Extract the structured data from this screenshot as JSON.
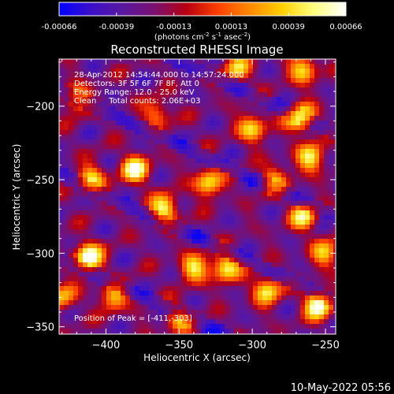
{
  "chart_data": {
    "type": "heatmap",
    "title": "Reconstructed RHESSI Image",
    "xlabel": "Heliocentric X (arcsec)",
    "ylabel": "Heliocentric Y (arcsec)",
    "xlim": [
      -432,
      -243
    ],
    "ylim": [
      -355,
      -168
    ],
    "xticks": [
      -400,
      -350,
      -300,
      -250
    ],
    "yticks": [
      -200,
      -250,
      -300,
      -350
    ],
    "colorbar": {
      "ticks": [
        "-0.00066",
        "-0.00039",
        "-0.00013",
        "0.00013",
        "0.00039",
        "0.00066"
      ],
      "unit_text": "(photons cm",
      "unit_sup1": "-2",
      "unit_mid": " s",
      "unit_sup2": "-1",
      "unit_mid2": " asec",
      "unit_sup3": "-2",
      "unit_end": ")",
      "colors": [
        "#0000ff",
        "#3b10c8",
        "#5a18a0",
        "#7a1070",
        "#b80010",
        "#ff4000",
        "#ff8a00",
        "#ffd000",
        "#ffff80",
        "#ffffff"
      ]
    },
    "annotations": [
      "28-Apr-2012 14:54:44.000 to 14:57:24.000",
      "Detectors: 3F 5F 6F 7F 8F, Att 0",
      "Energy Range: 12.0 - 25.0 keV",
      "Clean     Total counts: 2.06E+03"
    ],
    "peak_label": "Position of Peak = [-411,-303]",
    "hot_spots": [
      {
        "x": -412,
        "y": -303,
        "v": 1.0
      },
      {
        "x": -255,
        "y": -335,
        "v": 0.95
      },
      {
        "x": -267,
        "y": -208,
        "v": 0.9
      },
      {
        "x": -380,
        "y": -243,
        "v": 0.85
      },
      {
        "x": -360,
        "y": -270,
        "v": 0.8
      },
      {
        "x": -330,
        "y": -252,
        "v": 0.75
      },
      {
        "x": -318,
        "y": -310,
        "v": 0.8
      },
      {
        "x": -290,
        "y": -325,
        "v": 0.75
      },
      {
        "x": -410,
        "y": -250,
        "v": 0.7
      },
      {
        "x": -340,
        "y": -310,
        "v": 0.7
      },
      {
        "x": -265,
        "y": -275,
        "v": 0.7
      },
      {
        "x": -420,
        "y": -195,
        "v": 0.6
      },
      {
        "x": -300,
        "y": -215,
        "v": 0.7
      },
      {
        "x": -310,
        "y": -175,
        "v": 0.6
      },
      {
        "x": -395,
        "y": -330,
        "v": 0.6
      },
      {
        "x": -350,
        "y": -345,
        "v": 0.55
      },
      {
        "x": -260,
        "y": -235,
        "v": 0.75
      },
      {
        "x": -365,
        "y": -205,
        "v": 0.5
      },
      {
        "x": -285,
        "y": -250,
        "v": 0.55
      },
      {
        "x": -250,
        "y": -300,
        "v": 0.6
      },
      {
        "x": -430,
        "y": -330,
        "v": 0.55
      },
      {
        "x": -265,
        "y": -175,
        "v": 0.7
      }
    ]
  },
  "footer": {
    "timestamp": "10-May-2022 05:56"
  }
}
